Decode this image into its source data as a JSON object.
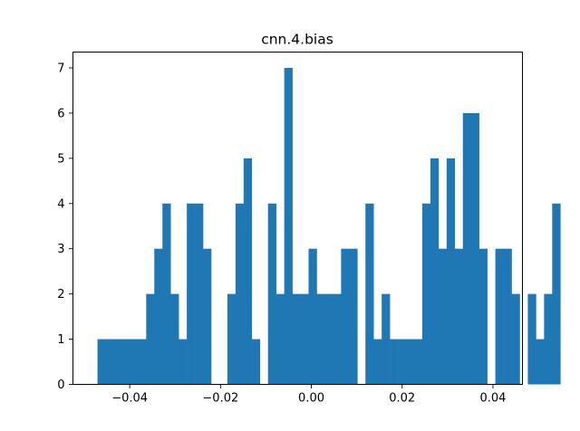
{
  "chart_data": {
    "type": "bar",
    "title": "cnn.4.bias",
    "xlabel": "",
    "ylabel": "",
    "xlim": [
      -0.0525,
      0.0465
    ],
    "ylim": [
      0,
      7.35
    ],
    "bar_color": "#1f77b4",
    "grid": false,
    "bins": {
      "start": -0.0471,
      "width": 0.0017884,
      "counts": [
        1,
        1,
        1,
        1,
        1,
        1,
        2,
        3,
        4,
        2,
        1,
        4,
        4,
        3,
        0,
        0,
        2,
        4,
        5,
        1,
        0,
        4,
        2,
        7,
        2,
        2,
        3,
        2,
        2,
        2,
        3,
        3,
        0,
        4,
        1,
        2,
        1,
        1,
        1,
        1,
        4,
        5,
        3,
        5,
        3,
        6,
        6,
        3,
        0,
        3,
        3,
        2,
        0,
        2,
        1,
        2,
        4
      ]
    },
    "xticks": [
      {
        "value": -0.04,
        "label": "−0.04"
      },
      {
        "value": -0.02,
        "label": "−0.02"
      },
      {
        "value": 0.0,
        "label": "0.00"
      },
      {
        "value": 0.02,
        "label": "0.02"
      },
      {
        "value": 0.04,
        "label": "0.04"
      }
    ],
    "yticks": [
      {
        "value": 0,
        "label": "0"
      },
      {
        "value": 1,
        "label": "1"
      },
      {
        "value": 2,
        "label": "2"
      },
      {
        "value": 3,
        "label": "3"
      },
      {
        "value": 4,
        "label": "4"
      },
      {
        "value": 5,
        "label": "5"
      },
      {
        "value": 6,
        "label": "6"
      },
      {
        "value": 7,
        "label": "7"
      }
    ]
  }
}
